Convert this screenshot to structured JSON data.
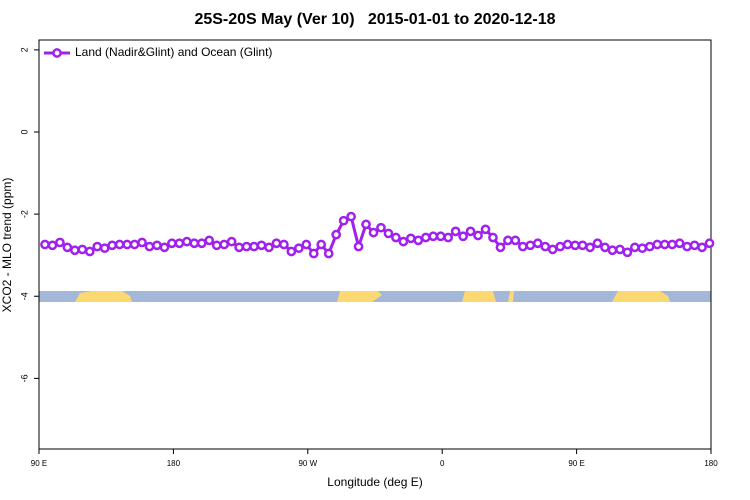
{
  "chart_data": {
    "type": "line",
    "title": "25S-20S May (Ver 10)   2015-01-01 to 2020-12-18",
    "x_label": "Longitude (deg E)",
    "y_label": "XCO2 - MLO trend (ppm)",
    "x": [
      94,
      99,
      104,
      109,
      114,
      119,
      124,
      129,
      134,
      139,
      144,
      149,
      154,
      159,
      164,
      169,
      174,
      179,
      184,
      189,
      194,
      199,
      204,
      209,
      214,
      219,
      224,
      229,
      234,
      239,
      244,
      249,
      254,
      259,
      264,
      269,
      274,
      279,
      284,
      289,
      294,
      299,
      304,
      309,
      314,
      319,
      324,
      329,
      334,
      339,
      344,
      349,
      354,
      359,
      364,
      369,
      374,
      379,
      384,
      389,
      394,
      399,
      404,
      409,
      414,
      419,
      424,
      429,
      434,
      439,
      444,
      449,
      454,
      459,
      464,
      469,
      474,
      479,
      484,
      489,
      494,
      499,
      504,
      509,
      514,
      519,
      524,
      529,
      534,
      539
    ],
    "series": [
      {
        "name": "Land (Nadir&Glint) and Ocean (Glint)",
        "color": "#a020f0",
        "values": [
          -2.74,
          -2.76,
          -2.69,
          -2.81,
          -2.88,
          -2.86,
          -2.91,
          -2.79,
          -2.83,
          -2.76,
          -2.74,
          -2.74,
          -2.74,
          -2.69,
          -2.79,
          -2.76,
          -2.81,
          -2.71,
          -2.71,
          -2.67,
          -2.71,
          -2.71,
          -2.64,
          -2.76,
          -2.74,
          -2.67,
          -2.81,
          -2.79,
          -2.79,
          -2.76,
          -2.81,
          -2.71,
          -2.74,
          -2.91,
          -2.83,
          -2.74,
          -2.96,
          -2.74,
          -2.96,
          -2.5,
          -2.16,
          -2.06,
          -2.79,
          -2.25,
          -2.45,
          -2.33,
          -2.47,
          -2.57,
          -2.67,
          -2.59,
          -2.64,
          -2.57,
          -2.54,
          -2.54,
          -2.57,
          -2.42,
          -2.54,
          -2.42,
          -2.52,
          -2.37,
          -2.57,
          -2.81,
          -2.64,
          -2.64,
          -2.79,
          -2.76,
          -2.71,
          -2.79,
          -2.86,
          -2.79,
          -2.74,
          -2.76,
          -2.76,
          -2.81,
          -2.71,
          -2.81,
          -2.88,
          -2.86,
          -2.93,
          -2.81,
          -2.83,
          -2.79,
          -2.74,
          -2.74,
          -2.74,
          -2.71,
          -2.79,
          -2.76,
          -2.81,
          -2.71
        ]
      }
    ],
    "xlim": [
      90,
      540
    ],
    "xticks": [
      {
        "value": 90,
        "label": "90 E"
      },
      180,
      {
        "value": 270,
        "label": "90 W"
      },
      {
        "value": 360,
        "label": "0"
      },
      {
        "value": 450,
        "label": "90 E"
      },
      {
        "value": 540,
        "label": "180"
      }
    ],
    "ylim": [
      -7.72,
      2.24
    ],
    "yticks": [
      2,
      0,
      -2,
      -4,
      -6
    ],
    "legend": "top-left"
  }
}
